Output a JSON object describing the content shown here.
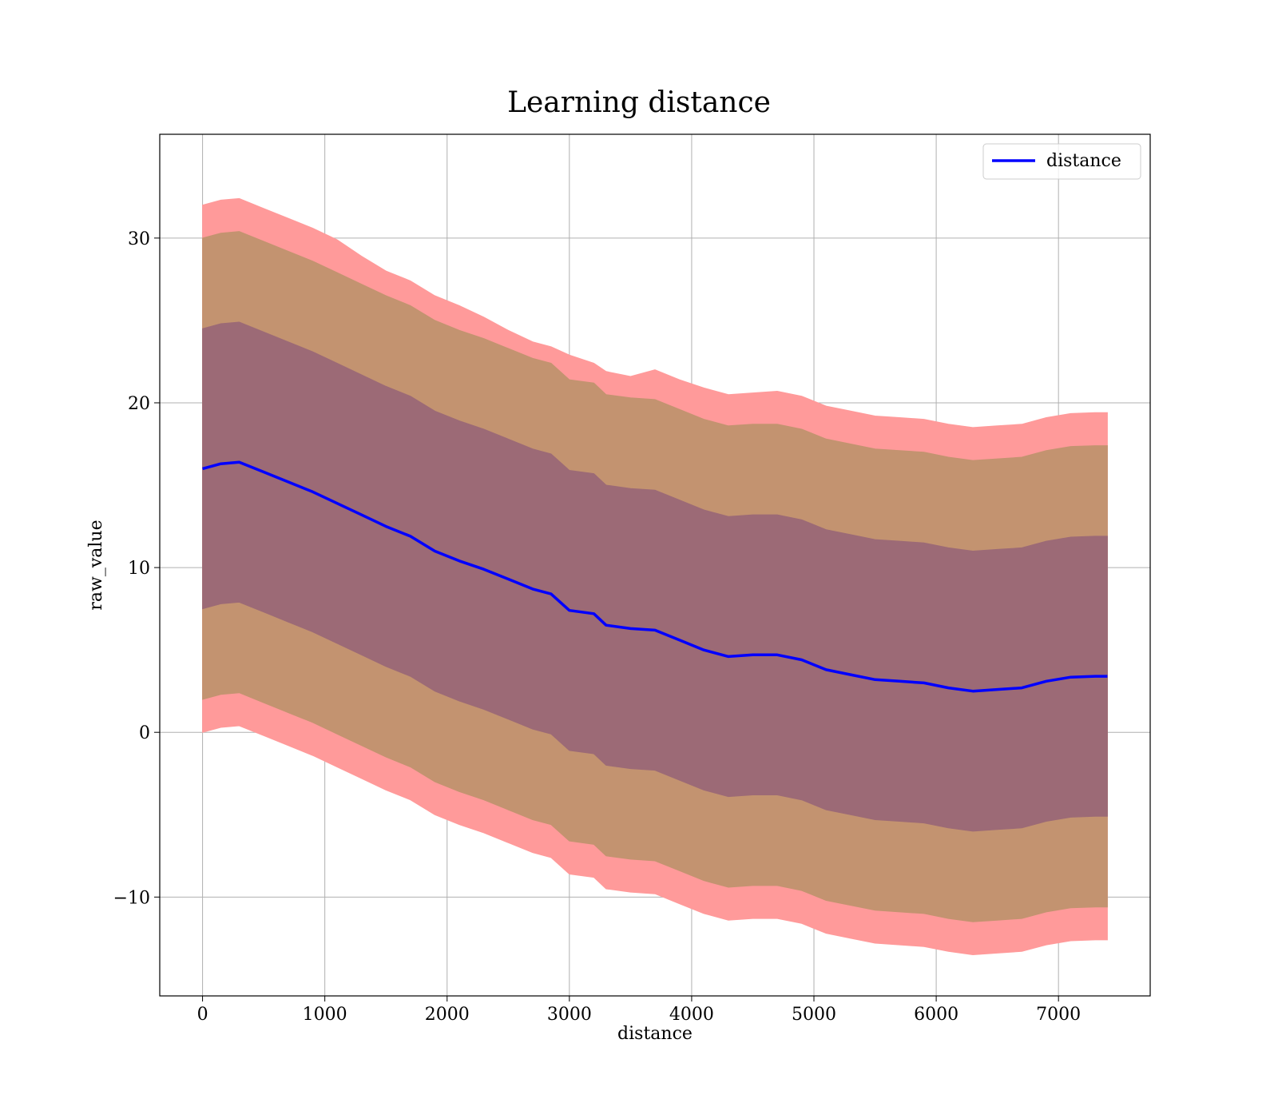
{
  "chart_data": {
    "type": "line",
    "title": "Learning distance",
    "xlabel": "distance",
    "ylabel": "raw_value",
    "xlim": [
      -350,
      7750
    ],
    "ylim": [
      -16,
      36.3
    ],
    "xticks": [
      0,
      1000,
      2000,
      3000,
      4000,
      5000,
      6000,
      7000
    ],
    "yticks": [
      -10,
      0,
      10,
      20,
      30
    ],
    "grid": true,
    "legend": {
      "position": "top-right",
      "entries": [
        "distance"
      ]
    },
    "colors": {
      "line": "#0000ff",
      "band_outer": "#ff9a9a",
      "band_middle": "#c39370",
      "band_inner": "#9c6a76",
      "grid": "#b0b0b0"
    },
    "x": [
      0,
      150,
      300,
      500,
      700,
      900,
      1100,
      1300,
      1500,
      1700,
      1900,
      2100,
      2300,
      2500,
      2700,
      2850,
      3000,
      3200,
      3300,
      3500,
      3700,
      3900,
      4100,
      4300,
      4500,
      4700,
      4900,
      5100,
      5300,
      5500,
      5700,
      5900,
      6100,
      6300,
      6500,
      6700,
      6900,
      7100,
      7300,
      7400
    ],
    "series": [
      {
        "name": "distance",
        "values": [
          16.0,
          16.3,
          16.4,
          15.8,
          15.2,
          14.6,
          13.9,
          13.2,
          12.5,
          11.9,
          11.0,
          10.4,
          9.9,
          9.3,
          8.7,
          8.4,
          7.4,
          7.2,
          6.5,
          6.3,
          6.2,
          5.6,
          5.0,
          4.6,
          4.7,
          4.7,
          4.4,
          3.8,
          3.5,
          3.2,
          3.1,
          3.0,
          2.7,
          2.5,
          2.6,
          2.7,
          3.1,
          3.35,
          3.4,
          3.4
        ]
      }
    ],
    "bands": [
      {
        "upper": [
          32.0,
          32.3,
          32.4,
          31.8,
          31.2,
          30.6,
          29.9,
          28.9,
          28.0,
          27.4,
          26.5,
          25.9,
          25.2,
          24.4,
          23.7,
          23.4,
          22.9,
          22.4,
          21.9,
          21.6,
          22.0,
          21.4,
          20.9,
          20.5,
          20.6,
          20.7,
          20.4,
          19.8,
          19.5,
          19.2,
          19.1,
          19.0,
          18.7,
          18.5,
          18.6,
          18.7,
          19.1,
          19.35,
          19.4,
          19.4
        ],
        "lower": [
          0.0,
          0.3,
          0.4,
          -0.2,
          -0.8,
          -1.4,
          -2.1,
          -2.8,
          -3.5,
          -4.1,
          -5.0,
          -5.6,
          -6.1,
          -6.7,
          -7.3,
          -7.6,
          -8.6,
          -8.8,
          -9.5,
          -9.7,
          -9.8,
          -10.4,
          -11.0,
          -11.4,
          -11.3,
          -11.3,
          -11.6,
          -12.2,
          -12.5,
          -12.8,
          -12.9,
          -13.0,
          -13.3,
          -13.5,
          -13.4,
          -13.3,
          -12.9,
          -12.65,
          -12.6,
          -12.6
        ]
      },
      {
        "upper": [
          30.0,
          30.3,
          30.4,
          29.8,
          29.2,
          28.6,
          27.9,
          27.2,
          26.5,
          25.9,
          25.0,
          24.4,
          23.9,
          23.3,
          22.7,
          22.4,
          21.4,
          21.2,
          20.5,
          20.3,
          20.2,
          19.6,
          19.0,
          18.6,
          18.7,
          18.7,
          18.4,
          17.8,
          17.5,
          17.2,
          17.1,
          17.0,
          16.7,
          16.5,
          16.6,
          16.7,
          17.1,
          17.35,
          17.4,
          17.4
        ],
        "lower": [
          2.0,
          2.3,
          2.4,
          1.8,
          1.2,
          0.6,
          -0.1,
          -0.8,
          -1.5,
          -2.1,
          -3.0,
          -3.6,
          -4.1,
          -4.7,
          -5.3,
          -5.6,
          -6.6,
          -6.8,
          -7.5,
          -7.7,
          -7.8,
          -8.4,
          -9.0,
          -9.4,
          -9.3,
          -9.3,
          -9.6,
          -10.2,
          -10.5,
          -10.8,
          -10.9,
          -11.0,
          -11.3,
          -11.5,
          -11.4,
          -11.3,
          -10.9,
          -10.65,
          -10.6,
          -10.6
        ]
      },
      {
        "upper": [
          24.5,
          24.8,
          24.9,
          24.3,
          23.7,
          23.1,
          22.4,
          21.7,
          21.0,
          20.4,
          19.5,
          18.9,
          18.4,
          17.8,
          17.2,
          16.9,
          15.9,
          15.7,
          15.0,
          14.8,
          14.7,
          14.1,
          13.5,
          13.1,
          13.2,
          13.2,
          12.9,
          12.3,
          12.0,
          11.7,
          11.6,
          11.5,
          11.2,
          11.0,
          11.1,
          11.2,
          11.6,
          11.85,
          11.9,
          11.9
        ],
        "lower": [
          7.5,
          7.8,
          7.9,
          7.3,
          6.7,
          6.1,
          5.4,
          4.7,
          4.0,
          3.4,
          2.5,
          1.9,
          1.4,
          0.8,
          0.2,
          -0.1,
          -1.1,
          -1.3,
          -2.0,
          -2.2,
          -2.3,
          -2.9,
          -3.5,
          -3.9,
          -3.8,
          -3.8,
          -4.1,
          -4.7,
          -5.0,
          -5.3,
          -5.4,
          -5.5,
          -5.8,
          -6.0,
          -5.9,
          -5.8,
          -5.4,
          -5.15,
          -5.1,
          -5.1
        ]
      }
    ]
  }
}
